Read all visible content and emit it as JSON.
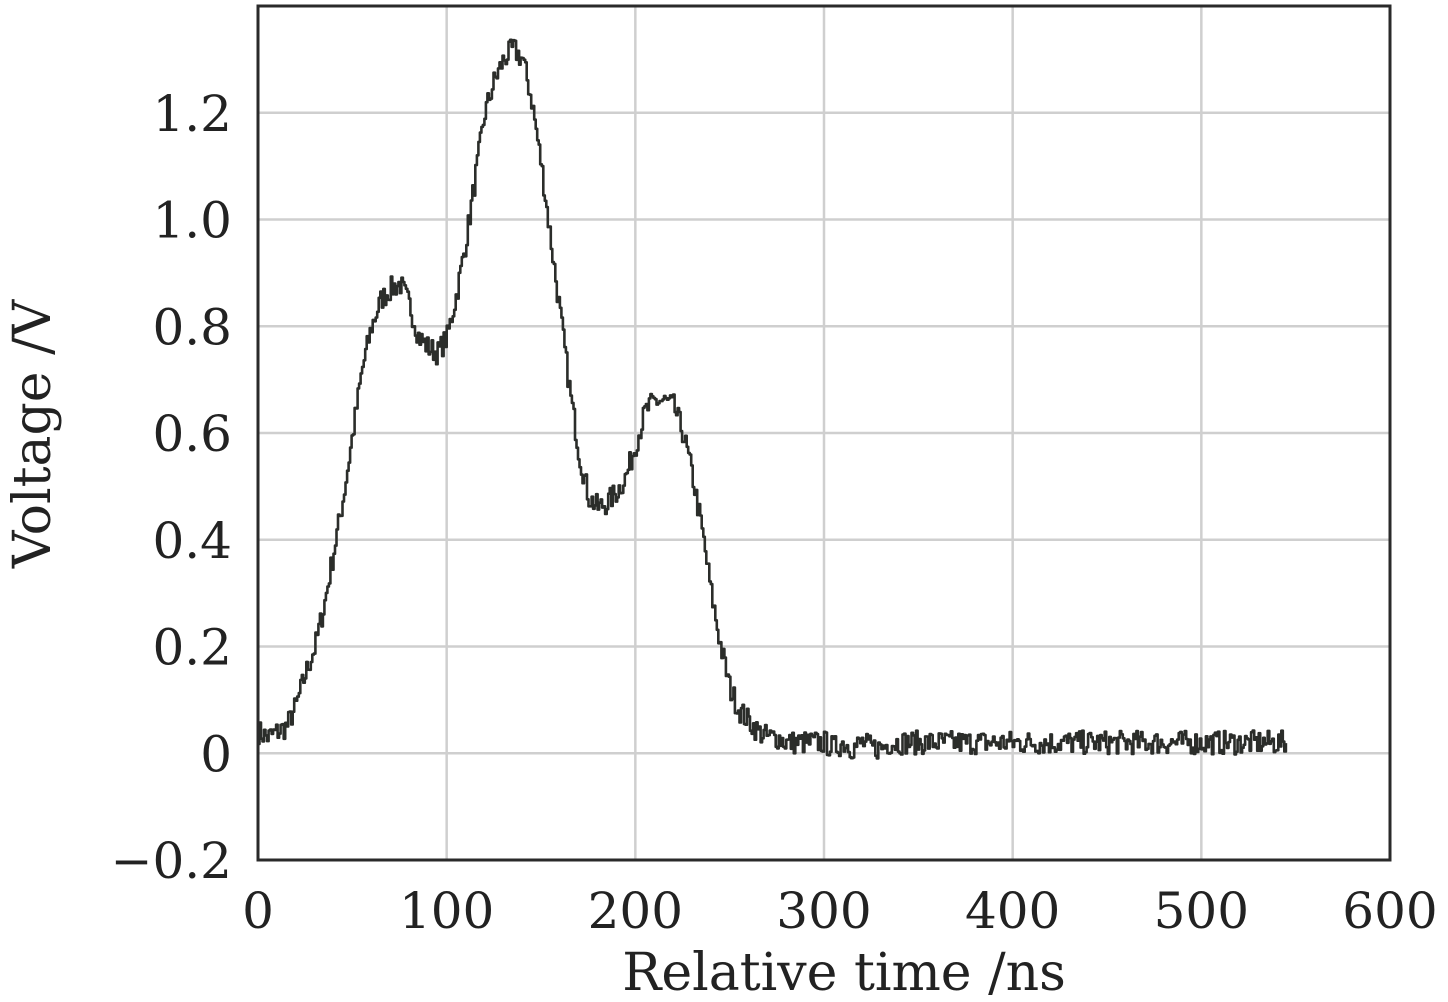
{
  "chart_data": {
    "type": "line",
    "title": "",
    "xlabel": "Relative time /ns",
    "ylabel": "Voltage /V",
    "xlim": [
      0,
      600
    ],
    "ylim": [
      -0.2,
      1.4
    ],
    "xticks": [
      0,
      100,
      200,
      300,
      400,
      500,
      600
    ],
    "xtick_labels": [
      "0",
      "100",
      "200",
      "300",
      "400",
      "500",
      "600"
    ],
    "yticks": [
      -0.2,
      0,
      0.2,
      0.4,
      0.6,
      0.8,
      1.0,
      1.2
    ],
    "ytick_labels": [
      "−0.2",
      "0",
      "0.2",
      "0.4",
      "0.6",
      "0.8",
      "1.0",
      "1.2"
    ],
    "grid": true,
    "legend": "none",
    "line_color": "#2b2d2a",
    "series": [
      {
        "x": [
          0,
          5,
          10,
          15,
          20,
          25,
          30,
          35,
          40,
          45,
          50,
          55,
          60,
          65,
          70,
          75,
          80,
          85,
          90,
          95,
          100,
          105,
          110,
          115,
          120,
          125,
          130,
          135,
          140,
          145,
          150,
          155,
          160,
          165,
          170,
          175,
          180,
          185,
          190,
          195,
          200,
          205,
          210,
          215,
          220,
          225,
          230,
          235,
          240,
          245,
          250,
          255,
          260,
          265,
          270,
          275,
          280,
          285,
          290,
          295,
          300,
          305,
          310,
          315,
          320,
          325,
          330,
          335,
          340,
          345,
          350,
          355,
          360,
          365,
          370,
          375,
          380,
          385,
          390,
          395,
          400,
          405,
          410,
          415,
          420,
          425,
          430,
          435,
          440,
          445,
          450,
          455,
          460,
          465,
          470,
          475,
          480,
          485,
          490,
          495,
          500,
          505,
          510,
          515,
          520,
          525,
          530,
          535,
          540,
          545
        ],
        "y": [
          0.04,
          0.03,
          0.04,
          0.05,
          0.09,
          0.15,
          0.2,
          0.28,
          0.38,
          0.48,
          0.6,
          0.72,
          0.8,
          0.85,
          0.87,
          0.88,
          0.84,
          0.78,
          0.76,
          0.75,
          0.78,
          0.86,
          0.96,
          1.08,
          1.2,
          1.26,
          1.3,
          1.32,
          1.3,
          1.22,
          1.1,
          0.96,
          0.82,
          0.68,
          0.56,
          0.48,
          0.46,
          0.47,
          0.49,
          0.52,
          0.58,
          0.64,
          0.66,
          0.66,
          0.65,
          0.6,
          0.52,
          0.42,
          0.3,
          0.2,
          0.12,
          0.08,
          0.06,
          0.04,
          0.03,
          0.03,
          0.02,
          0.02,
          0.02,
          0.02,
          0.02,
          0.01,
          0.02,
          0.01,
          0.02,
          0.01,
          0.01,
          0.02,
          0.02,
          0.02,
          0.02,
          0.02,
          0.02,
          0.02,
          0.02,
          0.02,
          0.02,
          0.02,
          0.02,
          0.02,
          0.02,
          0.02,
          0.02,
          0.02,
          0.02,
          0.02,
          0.02,
          0.02,
          0.02,
          0.02,
          0.02,
          0.02,
          0.02,
          0.02,
          0.02,
          0.02,
          0.02,
          0.02,
          0.02,
          0.02,
          0.02,
          0.02,
          0.02,
          0.02,
          0.02,
          0.02,
          0.02,
          0.02,
          0.02,
          0.02
        ]
      }
    ]
  }
}
